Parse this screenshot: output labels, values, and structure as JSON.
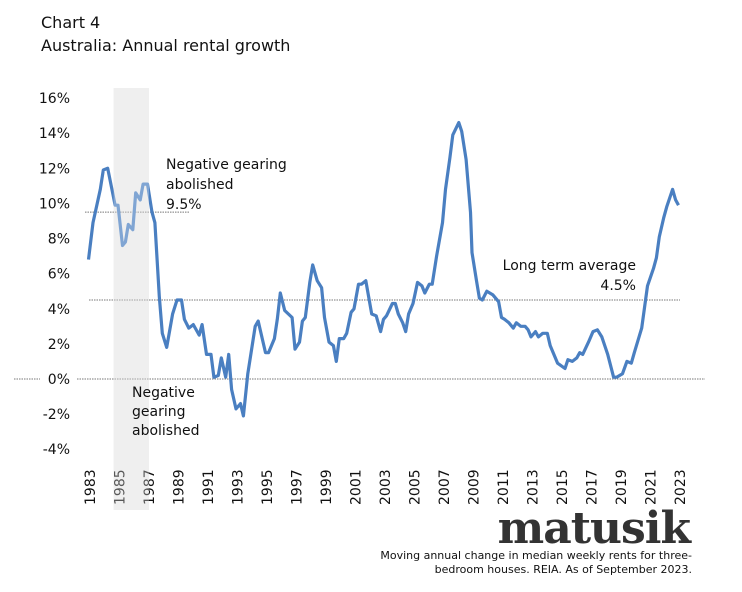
{
  "header": {
    "chart_number": "Chart 4",
    "title": "Australia:  Annual rental growth"
  },
  "logo": "matusik",
  "caption": {
    "line1": "Moving annual change in median weekly rents for three-",
    "line2": "bedroom houses. REIA.  As of September 2023."
  },
  "chart_data": {
    "type": "line",
    "title": "Australia:  Annual rental growth",
    "xlabel": "",
    "ylabel": "",
    "xlim": [
      1983,
      2023
    ],
    "ylim": [
      -4,
      16
    ],
    "grid": false,
    "legend": "none",
    "line_color": "#4a7fc1",
    "x_ticks": [
      "1983",
      "1985",
      "1987",
      "1989",
      "1991",
      "1993",
      "1995",
      "1997",
      "1999",
      "2001",
      "2003",
      "2005",
      "2007",
      "2009",
      "2011",
      "2013",
      "2015",
      "2017",
      "2019",
      "2021",
      "2023"
    ],
    "y_ticks": [
      "16%",
      "14%",
      "12%",
      "10%",
      "8%",
      "6%",
      "4%",
      "2%",
      "0%",
      "-2%",
      "-4%"
    ],
    "y_tick_values": [
      16,
      14,
      12,
      10,
      8,
      6,
      4,
      2,
      0,
      -2,
      -4
    ],
    "shaded_period": {
      "from": 1984.6,
      "to": 1987.0,
      "color": "#e8e8e8"
    },
    "reference_lines": [
      {
        "value": 9.5,
        "label_lines": [
          "Negative gearing",
          "abolished",
          "9.5%"
        ]
      },
      {
        "value": 4.5,
        "label_lines": [
          "Long term average",
          "4.5%"
        ]
      },
      {
        "value": 0
      }
    ],
    "shaded_label_lines": [
      "Negative",
      "gearing",
      "abolished"
    ],
    "series": [
      {
        "x": [
          1982.9,
          1983.2,
          1983.7,
          1983.9,
          1984.2,
          1984.7,
          1984.9,
          1985.2,
          1985.4,
          1985.6,
          1985.9,
          1986.1,
          1986.4,
          1986.6,
          1986.9,
          1987.2,
          1987.4,
          1987.7,
          1987.9,
          1988.2,
          1988.6,
          1988.9,
          1989.2,
          1989.4,
          1989.7,
          1990.0,
          1990.4,
          1990.6,
          1990.9,
          1991.2,
          1991.4,
          1991.7,
          1991.9,
          1992.2,
          1992.4,
          1992.6,
          1992.9,
          1993.2,
          1993.4,
          1993.7,
          1994.2,
          1994.4,
          1994.9,
          1995.1,
          1995.5,
          1995.7,
          1995.9,
          1996.2,
          1996.7,
          1996.9,
          1997.2,
          1997.4,
          1997.6,
          1997.9,
          1998.1,
          1998.4,
          1998.7,
          1998.9,
          1999.2,
          1999.5,
          1999.7,
          1999.9,
          2000.2,
          2000.4,
          2000.7,
          2000.9,
          2001.2,
          2001.4,
          2001.7,
          2002.1,
          2002.4,
          2002.7,
          2002.9,
          2003.1,
          2003.5,
          2003.7,
          2003.9,
          2004.2,
          2004.4,
          2004.6,
          2004.9,
          2005.2,
          2005.5,
          2005.7,
          2006.0,
          2006.2,
          2006.5,
          2006.9,
          2007.1,
          2007.4,
          2007.6,
          2008.0,
          2008.2,
          2008.5,
          2008.8,
          2008.9,
          2009.2,
          2009.4,
          2009.6,
          2009.9,
          2010.3,
          2010.7,
          2010.9,
          2011.1,
          2011.4,
          2011.7,
          2011.9,
          2012.2,
          2012.5,
          2012.7,
          2012.9,
          2013.2,
          2013.4,
          2013.7,
          2014.0,
          2014.2,
          2014.7,
          2015.2,
          2015.4,
          2015.7,
          2016.0,
          2016.2,
          2016.4,
          2016.8,
          2017.1,
          2017.4,
          2017.7,
          2018.1,
          2018.5,
          2018.7,
          2019.1,
          2019.4,
          2019.7,
          2019.9,
          2020.4,
          2020.6,
          2020.8,
          2021.2,
          2021.4,
          2021.6,
          2021.9,
          2022.1,
          2022.5,
          2022.7,
          2022.9
        ],
        "y": [
          6.8,
          8.9,
          10.8,
          11.9,
          12.0,
          9.9,
          9.9,
          7.6,
          7.8,
          8.8,
          8.5,
          10.6,
          10.2,
          11.1,
          11.1,
          9.5,
          8.9,
          4.7,
          2.6,
          1.8,
          3.7,
          4.5,
          4.5,
          3.4,
          2.9,
          3.1,
          2.5,
          3.1,
          1.4,
          1.4,
          0.1,
          0.2,
          1.2,
          0.1,
          1.4,
          -0.6,
          -1.7,
          -1.4,
          -2.1,
          0.3,
          3.0,
          3.3,
          1.5,
          1.5,
          2.3,
          3.4,
          4.9,
          3.9,
          3.5,
          1.7,
          2.1,
          3.3,
          3.5,
          5.5,
          6.5,
          5.6,
          5.2,
          3.5,
          2.1,
          1.9,
          1.0,
          2.3,
          2.3,
          2.6,
          3.8,
          4.0,
          5.4,
          5.4,
          5.6,
          3.7,
          3.6,
          2.7,
          3.4,
          3.6,
          4.3,
          4.3,
          3.7,
          3.2,
          2.7,
          3.7,
          4.3,
          5.5,
          5.3,
          4.9,
          5.4,
          5.4,
          7.0,
          8.9,
          10.8,
          12.6,
          13.9,
          14.6,
          14.1,
          12.5,
          9.5,
          7.2,
          5.6,
          4.6,
          4.5,
          5.0,
          4.8,
          4.4,
          3.5,
          3.4,
          3.2,
          2.9,
          3.2,
          3.0,
          3.0,
          2.8,
          2.4,
          2.7,
          2.4,
          2.6,
          2.6,
          1.9,
          0.9,
          0.6,
          1.1,
          1.0,
          1.2,
          1.5,
          1.4,
          2.1,
          2.7,
          2.8,
          2.4,
          1.4,
          0.1,
          0.1,
          0.3,
          1.0,
          0.9,
          1.5,
          2.9,
          4.1,
          5.3,
          6.3,
          6.9,
          8.1,
          9.2,
          9.8,
          10.8,
          10.2,
          9.9
        ]
      }
    ]
  }
}
